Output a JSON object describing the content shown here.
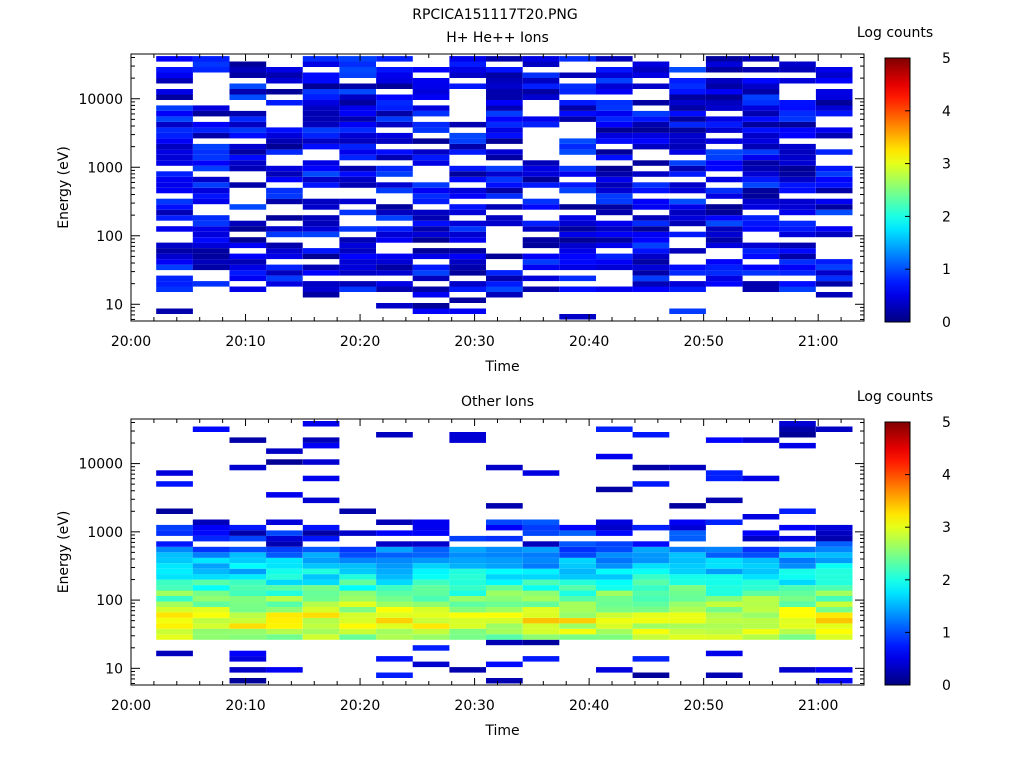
{
  "figure": {
    "title": "RPCICA151117T20.PNG"
  },
  "chart_data": [
    {
      "type": "heatmap",
      "title": "H+ He++ Ions",
      "xlabel": "Time",
      "ylabel": "Energy (eV)",
      "x_tick_labels": [
        "20:00",
        "20:10",
        "20:20",
        "20:30",
        "20:40",
        "20:50",
        "21:00"
      ],
      "x_range_minutes": [
        0,
        64
      ],
      "y_scale": "log",
      "y_range": [
        5.7,
        45000
      ],
      "y_tick_labels": [
        "10",
        "100",
        "1000",
        "10000"
      ],
      "colorbar": {
        "label": "Log counts",
        "range": [
          0,
          5
        ],
        "tick_labels": [
          "0",
          "1",
          "2",
          "3",
          "4",
          "5"
        ],
        "colormap": "jet"
      },
      "grid": false,
      "time_columns_minutes": [
        2.2,
        5.4,
        8.6,
        11.8,
        15.0,
        18.2,
        21.4,
        24.6,
        27.8,
        31.0,
        34.2,
        37.4,
        40.6,
        43.8,
        47.0,
        50.2,
        53.4,
        56.6,
        59.8
      ],
      "column_width_minutes": 3.2,
      "energy_range_eV": [
        6,
        42000
      ],
      "energy_rows": 48,
      "description_of_values": "sparse low counts (log counts ~0-1) across all energies; lowest energies mostly empty",
      "density": 0.72,
      "level_min": 0.1,
      "level_max": 1.0,
      "low_energy_cutoff_eV": 15
    },
    {
      "type": "heatmap",
      "title": "Other Ions",
      "xlabel": "Time",
      "ylabel": "Energy (eV)",
      "x_tick_labels": [
        "20:00",
        "20:10",
        "20:20",
        "20:30",
        "20:40",
        "20:50",
        "21:00"
      ],
      "x_range_minutes": [
        0,
        64
      ],
      "y_scale": "log",
      "y_range": [
        5.7,
        45000
      ],
      "y_tick_labels": [
        "10",
        "100",
        "1000",
        "10000"
      ],
      "colorbar": {
        "label": "Log counts",
        "range": [
          0,
          5
        ],
        "tick_labels": [
          "0",
          "1",
          "2",
          "3",
          "4",
          "5"
        ],
        "colormap": "jet"
      },
      "grid": false,
      "time_columns_minutes": [
        2.2,
        5.4,
        8.6,
        11.8,
        15.0,
        18.2,
        21.4,
        24.6,
        27.8,
        31.0,
        34.2,
        37.4,
        40.6,
        43.8,
        47.0,
        50.2,
        53.4,
        56.6,
        59.8
      ],
      "column_width_minutes": 3.2,
      "energy_range_eV": [
        6,
        42000
      ],
      "energy_rows": 48,
      "description_of_values": "intense band ~25-600 eV peaking near 40-80 eV (log counts ~2.5-3.5); sparse low counts above 1000 eV",
      "band_peak_eV": 50,
      "band_peak_level": 3.1,
      "band_range_eV": [
        25,
        600
      ],
      "sparse_density": 0.12
    }
  ]
}
